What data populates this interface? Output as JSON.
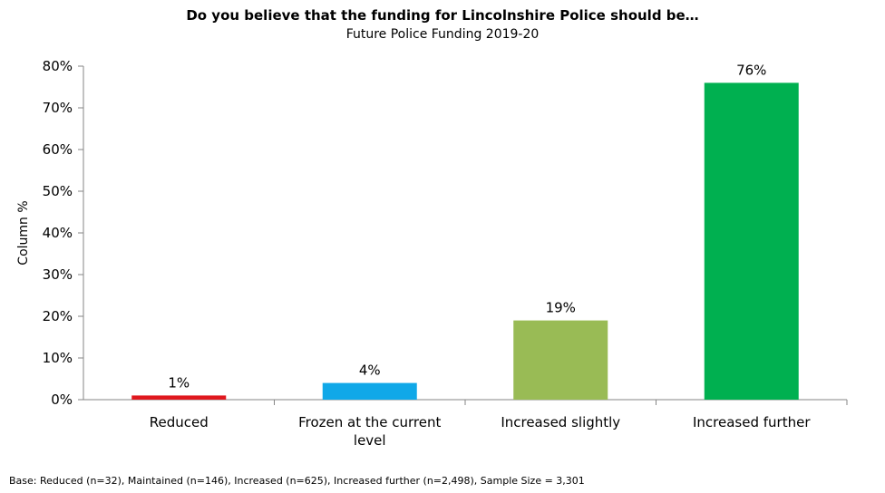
{
  "chart_data": {
    "type": "bar",
    "title": "Do you believe that the funding for Lincolnshire Police should be…",
    "subtitle": "Future Police Funding 2019-20",
    "ylabel": "Column %",
    "xlabel": "",
    "ylim": [
      0,
      80
    ],
    "yticks": [
      0,
      10,
      20,
      30,
      40,
      50,
      60,
      70,
      80
    ],
    "ytick_labels": [
      "0%",
      "10%",
      "20%",
      "30%",
      "40%",
      "50%",
      "60%",
      "70%",
      "80%"
    ],
    "categories": [
      [
        "Reduced"
      ],
      [
        "Frozen at the current",
        "level"
      ],
      [
        "Increased slightly"
      ],
      [
        "Increased further"
      ]
    ],
    "values": [
      1,
      4,
      19,
      76
    ],
    "data_labels": [
      "1%",
      "4%",
      "19%",
      "76%"
    ],
    "colors": [
      "#e0181e",
      "#10a8e8",
      "#99bb55",
      "#00b050"
    ],
    "grid": false,
    "legend": "none"
  },
  "footnote": "Base: Reduced (n=32), Maintained (n=146), Increased (n=625), Increased further (n=2,498), Sample Size = 3,301"
}
